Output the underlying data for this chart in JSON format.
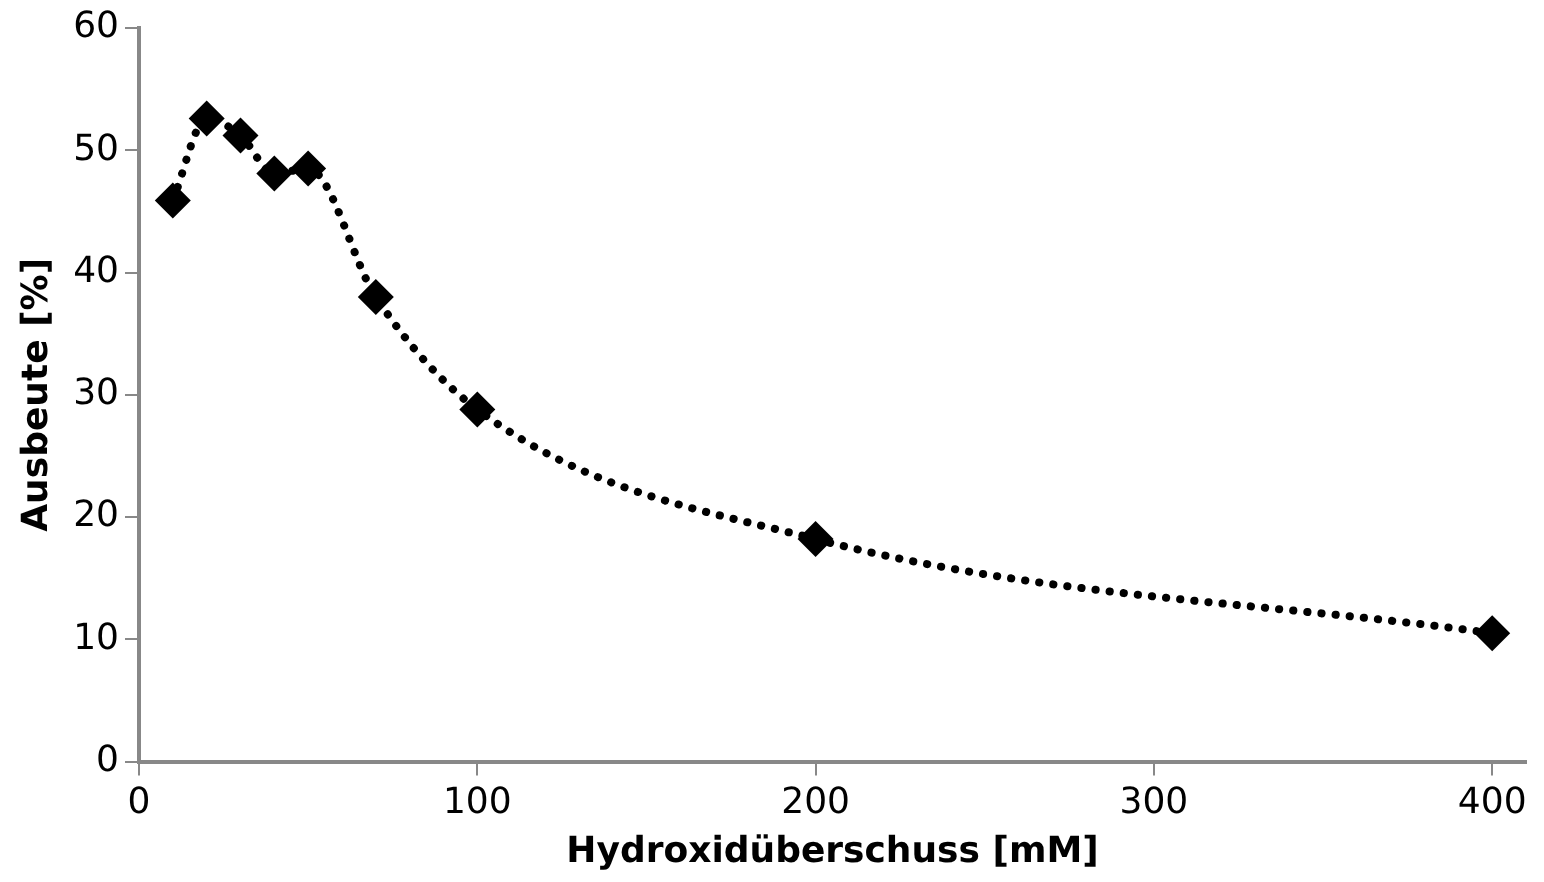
{
  "chart_data": {
    "type": "line",
    "xlabel": "Hydroxidüberschuss [mM]",
    "ylabel": "Ausbeute [%]",
    "x": [
      10,
      20,
      30,
      40,
      50,
      70,
      100,
      200,
      400
    ],
    "series": [
      {
        "color": "#000000",
        "values": [
          45.9,
          52.6,
          51.2,
          48.1,
          48.5,
          38.0,
          28.8,
          18.2,
          10.5
        ]
      }
    ],
    "xlim": [
      0,
      410
    ],
    "xticks": [
      0,
      100,
      200,
      300,
      400
    ],
    "ylim": [
      0,
      60
    ],
    "yticks": [
      0,
      10,
      20,
      30,
      40,
      50,
      60
    ],
    "grid": false,
    "legend": false,
    "marker": "diamond",
    "line_style": "dotted"
  }
}
